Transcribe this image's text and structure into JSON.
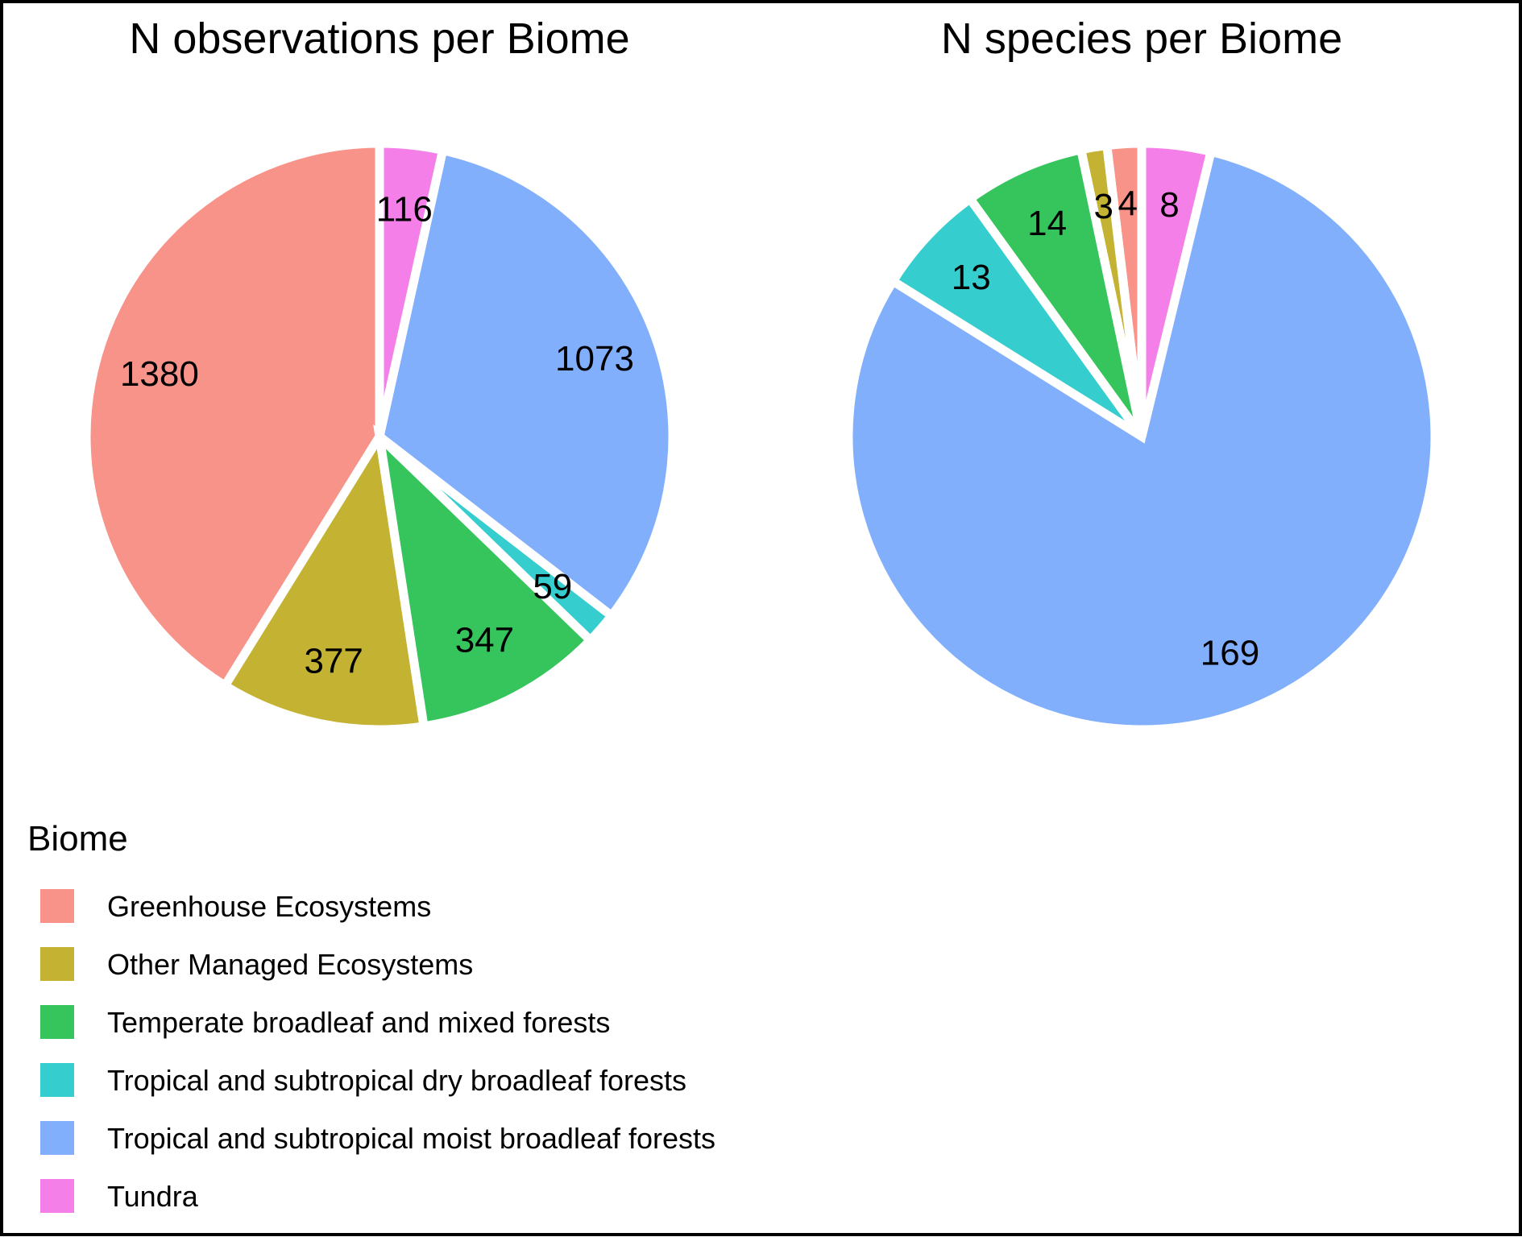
{
  "chart_data": [
    {
      "type": "pie",
      "title": "N observations per Biome",
      "categories": [
        "Greenhouse Ecosystems",
        "Other Managed Ecosystems",
        "Temperate broadleaf and mixed forests",
        "Tropical and subtropical dry broadleaf forests",
        "Tropical and subtropical moist broadleaf forests",
        "Tundra"
      ],
      "values": [
        1380,
        377,
        347,
        59,
        1073,
        116
      ],
      "labels": [
        "1380",
        "377",
        "347",
        "59",
        "1073",
        "116"
      ],
      "direction": "counterclockwise-from-top"
    },
    {
      "type": "pie",
      "title": "N species per Biome",
      "categories": [
        "Greenhouse Ecosystems",
        "Other Managed Ecosystems",
        "Temperate broadleaf and mixed forests",
        "Tropical and subtropical dry broadleaf forests",
        "Tropical and subtropical moist broadleaf forests",
        "Tundra"
      ],
      "values": [
        4,
        3,
        14,
        13,
        169,
        8
      ],
      "labels": [
        "4",
        "3",
        "14",
        "13",
        "169",
        "8"
      ],
      "direction": "counterclockwise-from-top"
    }
  ],
  "legend": {
    "title": "Biome",
    "position": "bottom-left",
    "items": [
      {
        "label": "Greenhouse Ecosystems",
        "color": "#F8938A"
      },
      {
        "label": "Other Managed Ecosystems",
        "color": "#C4B232"
      },
      {
        "label": "Temperate broadleaf and mixed forests",
        "color": "#36C55C"
      },
      {
        "label": "Tropical and subtropical dry broadleaf forests",
        "color": "#35CDCE"
      },
      {
        "label": "Tropical and subtropical moist broadleaf forests",
        "color": "#82AFFC"
      },
      {
        "label": "Tundra",
        "color": "#F57FE8"
      }
    ]
  }
}
